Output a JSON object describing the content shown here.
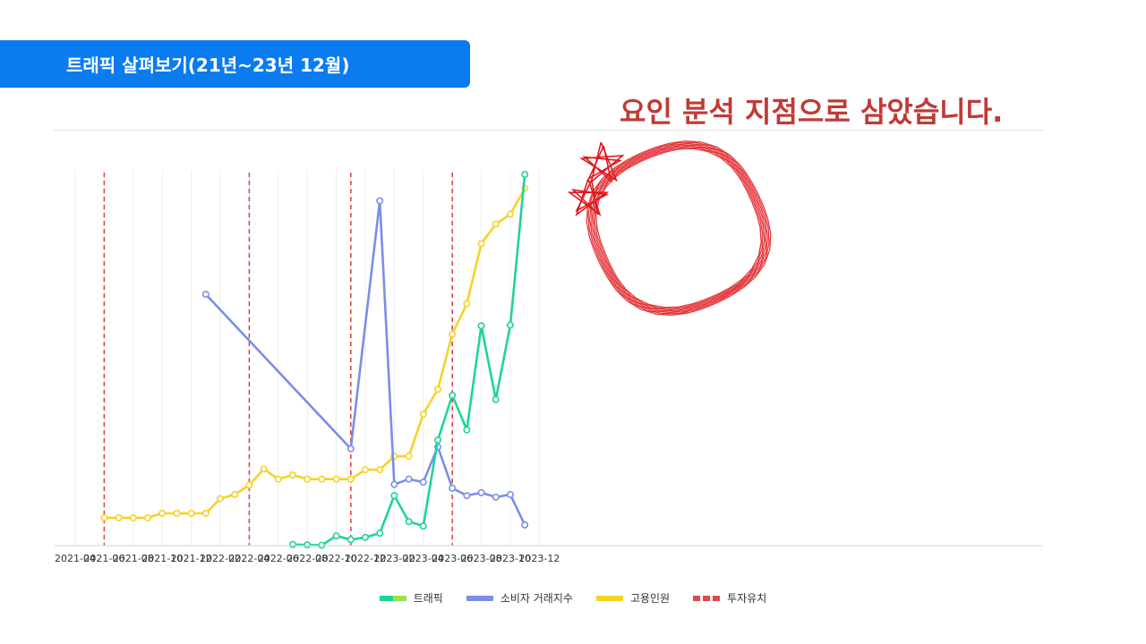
{
  "header": {
    "title": "트래픽 살펴보기(21년~23년 12월)",
    "annotation": "요인 분석 지점으로 삼았습니다."
  },
  "chart_data": {
    "type": "line",
    "x_axis": {
      "ticks": [
        "2021-04",
        "2021-06",
        "2021-08",
        "2021-10",
        "2021-12",
        "2022-02",
        "2022-04",
        "2022-06",
        "2022-08",
        "2022-10",
        "2022-12",
        "2023-02",
        "2023-04",
        "2023-06",
        "2023-08",
        "2023-10",
        "2023-12"
      ]
    },
    "y_axis": {
      "visible": false
    },
    "grid": "vertical",
    "series": [
      {
        "name": "트래픽",
        "color": "#1ed39a",
        "points": [
          {
            "x": "2022-07",
            "y": 0.3
          },
          {
            "x": "2022-08",
            "y": 0.2
          },
          {
            "x": "2022-09",
            "y": 0.1
          },
          {
            "x": "2022-10",
            "y": 2.6
          },
          {
            "x": "2022-11",
            "y": 1.6
          },
          {
            "x": "2022-12",
            "y": 2.2
          },
          {
            "x": "2023-01",
            "y": 3.3
          },
          {
            "x": "2023-02",
            "y": 13.3
          },
          {
            "x": "2023-03",
            "y": 6.4
          },
          {
            "x": "2023-04",
            "y": 5.2
          },
          {
            "x": "2023-05",
            "y": 28.1
          },
          {
            "x": "2023-06",
            "y": 40.0
          },
          {
            "x": "2023-07",
            "y": 30.8
          },
          {
            "x": "2023-08",
            "y": 58.5
          },
          {
            "x": "2023-09",
            "y": 38.9
          },
          {
            "x": "2023-10",
            "y": 58.7
          },
          {
            "x": "2023-11",
            "y": 98.8
          }
        ]
      },
      {
        "name": "소비자 거래지수",
        "color": "#7b8ee8",
        "points": [
          {
            "x": "2022-01",
            "y": 66.9
          },
          {
            "x": "2022-11",
            "y": 25.8
          },
          {
            "x": "2023-01",
            "y": 91.8
          },
          {
            "x": "2023-02",
            "y": 16.3
          },
          {
            "x": "2023-03",
            "y": 17.7
          },
          {
            "x": "2023-04",
            "y": 16.9
          },
          {
            "x": "2023-05",
            "y": 26.3
          },
          {
            "x": "2023-06",
            "y": 15.3
          },
          {
            "x": "2023-07",
            "y": 13.3
          },
          {
            "x": "2023-08",
            "y": 14.1
          },
          {
            "x": "2023-09",
            "y": 12.9
          },
          {
            "x": "2023-10",
            "y": 13.6
          },
          {
            "x": "2023-11",
            "y": 5.5
          }
        ]
      },
      {
        "name": "고용인원",
        "color": "#f4d327",
        "points": [
          {
            "x": "2021-06",
            "y": 7.4
          },
          {
            "x": "2021-07",
            "y": 7.4
          },
          {
            "x": "2021-08",
            "y": 7.4
          },
          {
            "x": "2021-09",
            "y": 7.4
          },
          {
            "x": "2021-10",
            "y": 8.6
          },
          {
            "x": "2021-11",
            "y": 8.6
          },
          {
            "x": "2021-12",
            "y": 8.6
          },
          {
            "x": "2022-01",
            "y": 8.6
          },
          {
            "x": "2022-02",
            "y": 12.5
          },
          {
            "x": "2022-03",
            "y": 13.6
          },
          {
            "x": "2022-04",
            "y": 16.1
          },
          {
            "x": "2022-05",
            "y": 20.4
          },
          {
            "x": "2022-06",
            "y": 17.7
          },
          {
            "x": "2022-07",
            "y": 18.8
          },
          {
            "x": "2022-08",
            "y": 17.7
          },
          {
            "x": "2022-09",
            "y": 17.7
          },
          {
            "x": "2022-10",
            "y": 17.7
          },
          {
            "x": "2022-11",
            "y": 17.7
          },
          {
            "x": "2022-12",
            "y": 20.2
          },
          {
            "x": "2023-01",
            "y": 20.2
          },
          {
            "x": "2023-02",
            "y": 23.8
          },
          {
            "x": "2023-03",
            "y": 23.8
          },
          {
            "x": "2023-04",
            "y": 35.0
          },
          {
            "x": "2023-05",
            "y": 41.6
          },
          {
            "x": "2023-06",
            "y": 56.3
          },
          {
            "x": "2023-07",
            "y": 64.4
          },
          {
            "x": "2023-08",
            "y": 80.4
          },
          {
            "x": "2023-09",
            "y": 85.6
          },
          {
            "x": "2023-10",
            "y": 88.2
          },
          {
            "x": "2023-11",
            "y": 95.1
          }
        ]
      }
    ],
    "event_lines": {
      "name": "투자유치",
      "color": "#e0484a",
      "dates": [
        "2021-06",
        "2022-04",
        "2022-11",
        "2023-06"
      ]
    },
    "highlight": {
      "shape": "hand-drawn circle with stars",
      "color": "#e0191e",
      "target": "2023-01"
    },
    "legend": {
      "position": "bottom-center",
      "items": [
        {
          "label": "트래픽",
          "colors": [
            "#1ed39a",
            "#9be34c"
          ]
        },
        {
          "label": "소비자 거래지수",
          "colors": [
            "#7b8ee8"
          ]
        },
        {
          "label": "고용인원",
          "colors": [
            "#f4d327"
          ]
        },
        {
          "label": "투자유치",
          "colors": [
            "#e0484a"
          ],
          "style": "dashed"
        }
      ]
    }
  }
}
